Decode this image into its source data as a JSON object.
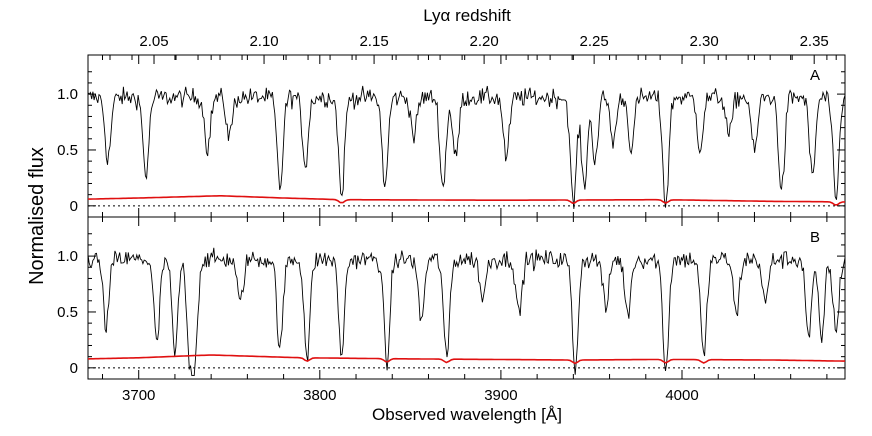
{
  "chart_data": {
    "type": "line",
    "title": "",
    "xlabel": "Observed wavelength [Å]",
    "ylabel": "Normalised flux",
    "x2label": "Lyα redshift",
    "xlim": [
      3672,
      4090
    ],
    "x2lim": [
      2.02,
      2.364
    ],
    "xticks": [
      3700,
      3800,
      3900,
      4000
    ],
    "x2ticks": [
      "2.05",
      "2.10",
      "2.15",
      "2.20",
      "2.25",
      "2.30",
      "2.35"
    ],
    "panels": [
      {
        "label": "A",
        "ylim": [
          -0.1,
          1.35
        ],
        "yticks": [
          "0",
          "0.5",
          "1.0"
        ],
        "continuum": 0.97,
        "absorption_lines": [
          {
            "x": 3683,
            "depth": 0.55
          },
          {
            "x": 3704,
            "depth": 0.7
          },
          {
            "x": 3738,
            "depth": 0.45
          },
          {
            "x": 3750,
            "depth": 0.35
          },
          {
            "x": 3778,
            "depth": 0.82
          },
          {
            "x": 3792,
            "depth": 0.6
          },
          {
            "x": 3812,
            "depth": 0.88
          },
          {
            "x": 3836,
            "depth": 0.8
          },
          {
            "x": 3852,
            "depth": 0.35
          },
          {
            "x": 3868,
            "depth": 0.82
          },
          {
            "x": 3875,
            "depth": 0.55
          },
          {
            "x": 3903,
            "depth": 0.55
          },
          {
            "x": 3940,
            "depth": 0.97
          },
          {
            "x": 3946,
            "depth": 0.8
          },
          {
            "x": 3952,
            "depth": 0.55
          },
          {
            "x": 3962,
            "depth": 0.4
          },
          {
            "x": 3972,
            "depth": 0.45
          },
          {
            "x": 3991,
            "depth": 0.97
          },
          {
            "x": 4010,
            "depth": 0.45
          },
          {
            "x": 4026,
            "depth": 0.35
          },
          {
            "x": 4040,
            "depth": 0.5
          },
          {
            "x": 4055,
            "depth": 0.85
          },
          {
            "x": 4072,
            "depth": 0.72
          },
          {
            "x": 4085,
            "depth": 0.95
          }
        ],
        "noise": [
          [
            3672,
            0.06
          ],
          [
            3700,
            0.07
          ],
          [
            3745,
            0.09
          ],
          [
            3780,
            0.07
          ],
          [
            3812,
            0.055
          ],
          [
            3900,
            0.05
          ],
          [
            3990,
            0.055
          ],
          [
            4050,
            0.04
          ],
          [
            4090,
            0.035
          ]
        ]
      },
      {
        "label": "B",
        "ylim": [
          -0.1,
          1.35
        ],
        "yticks": [
          "0",
          "0.5",
          "1.0"
        ],
        "continuum": 0.97,
        "absorption_lines": [
          {
            "x": 3682,
            "depth": 0.6
          },
          {
            "x": 3710,
            "depth": 0.75
          },
          {
            "x": 3720,
            "depth": 0.85
          },
          {
            "x": 3728,
            "depth": 0.8
          },
          {
            "x": 3731,
            "depth": 0.82
          },
          {
            "x": 3756,
            "depth": 0.4
          },
          {
            "x": 3778,
            "depth": 0.82
          },
          {
            "x": 3793,
            "depth": 0.88
          },
          {
            "x": 3812,
            "depth": 0.85
          },
          {
            "x": 3837,
            "depth": 0.95
          },
          {
            "x": 3856,
            "depth": 0.55
          },
          {
            "x": 3870,
            "depth": 0.9
          },
          {
            "x": 3890,
            "depth": 0.35
          },
          {
            "x": 3910,
            "depth": 0.5
          },
          {
            "x": 3941,
            "depth": 0.99
          },
          {
            "x": 3958,
            "depth": 0.45
          },
          {
            "x": 3970,
            "depth": 0.5
          },
          {
            "x": 3991,
            "depth": 0.99
          },
          {
            "x": 4012,
            "depth": 0.88
          },
          {
            "x": 4030,
            "depth": 0.5
          },
          {
            "x": 4046,
            "depth": 0.4
          },
          {
            "x": 4070,
            "depth": 0.7
          },
          {
            "x": 4077,
            "depth": 0.72
          },
          {
            "x": 4085,
            "depth": 0.65
          }
        ],
        "noise": [
          [
            3672,
            0.08
          ],
          [
            3700,
            0.09
          ],
          [
            3740,
            0.115
          ],
          [
            3790,
            0.09
          ],
          [
            3850,
            0.08
          ],
          [
            3940,
            0.07
          ],
          [
            3990,
            0.075
          ],
          [
            4050,
            0.07
          ],
          [
            4090,
            0.06
          ]
        ]
      }
    ],
    "colors": {
      "flux": "#000000",
      "noise": "#e01010"
    }
  }
}
